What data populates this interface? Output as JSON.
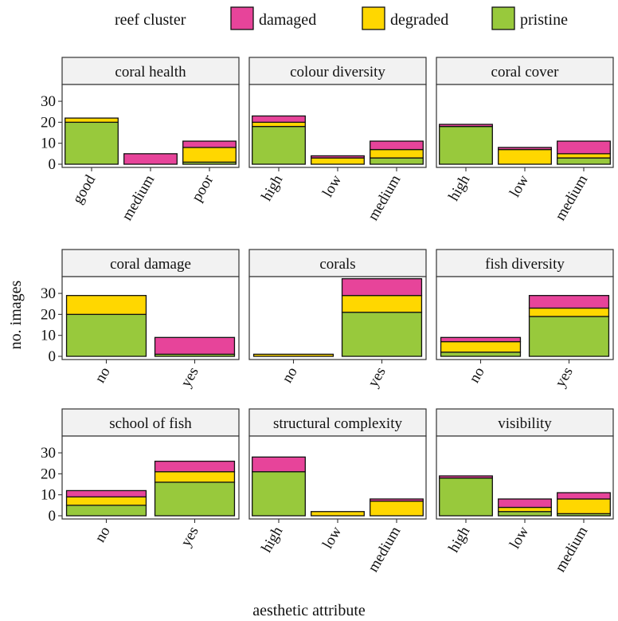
{
  "chart_data": {
    "type": "bar",
    "stacked": true,
    "xlabel": "aesthetic attribute",
    "ylabel": "no. images",
    "ylim": [
      0,
      38
    ],
    "yticks": [
      0,
      10,
      20,
      30
    ],
    "grid": false,
    "legend": {
      "title": "reef cluster",
      "position": "top",
      "entries": [
        {
          "key": "damaged",
          "label": "damaged",
          "color": "#E7449A"
        },
        {
          "key": "degraded",
          "label": "degraded",
          "color": "#FFD700"
        },
        {
          "key": "pristine",
          "label": "pristine",
          "color": "#98C93C"
        }
      ]
    },
    "stack_order": [
      "pristine",
      "degraded",
      "damaged"
    ],
    "panels": [
      {
        "title": "coral health",
        "categories": [
          "good",
          "medium",
          "poor"
        ],
        "values": {
          "pristine": [
            20,
            0,
            1
          ],
          "degraded": [
            2,
            0,
            7
          ],
          "damaged": [
            0,
            5,
            3
          ]
        }
      },
      {
        "title": "colour diversity",
        "categories": [
          "high",
          "low",
          "medium"
        ],
        "values": {
          "pristine": [
            18,
            0,
            3
          ],
          "degraded": [
            2,
            3,
            4
          ],
          "damaged": [
            3,
            1,
            4
          ]
        }
      },
      {
        "title": "coral cover",
        "categories": [
          "high",
          "low",
          "medium"
        ],
        "values": {
          "pristine": [
            18,
            0,
            3
          ],
          "degraded": [
            0,
            7,
            2
          ],
          "damaged": [
            1,
            1,
            6
          ]
        }
      },
      {
        "title": "coral damage",
        "categories": [
          "no",
          "yes"
        ],
        "values": {
          "pristine": [
            20,
            1
          ],
          "degraded": [
            9,
            0
          ],
          "damaged": [
            0,
            8
          ]
        }
      },
      {
        "title": "corals",
        "categories": [
          "no",
          "yes"
        ],
        "values": {
          "pristine": [
            0,
            21
          ],
          "degraded": [
            1,
            8
          ],
          "damaged": [
            0,
            8
          ]
        }
      },
      {
        "title": "fish diversity",
        "categories": [
          "no",
          "yes"
        ],
        "values": {
          "pristine": [
            2,
            19
          ],
          "degraded": [
            5,
            4
          ],
          "damaged": [
            2,
            6
          ]
        }
      },
      {
        "title": "school of fish",
        "categories": [
          "no",
          "yes"
        ],
        "values": {
          "pristine": [
            5,
            16
          ],
          "degraded": [
            4,
            5
          ],
          "damaged": [
            3,
            5
          ]
        }
      },
      {
        "title": "structural complexity",
        "categories": [
          "high",
          "low",
          "medium"
        ],
        "values": {
          "pristine": [
            21,
            0,
            0
          ],
          "degraded": [
            0,
            2,
            7
          ],
          "damaged": [
            7,
            0,
            1
          ]
        }
      },
      {
        "title": "visibility",
        "categories": [
          "high",
          "low",
          "medium"
        ],
        "values": {
          "pristine": [
            18,
            2,
            1
          ],
          "degraded": [
            0,
            2,
            7
          ],
          "damaged": [
            1,
            4,
            3
          ]
        }
      }
    ]
  }
}
